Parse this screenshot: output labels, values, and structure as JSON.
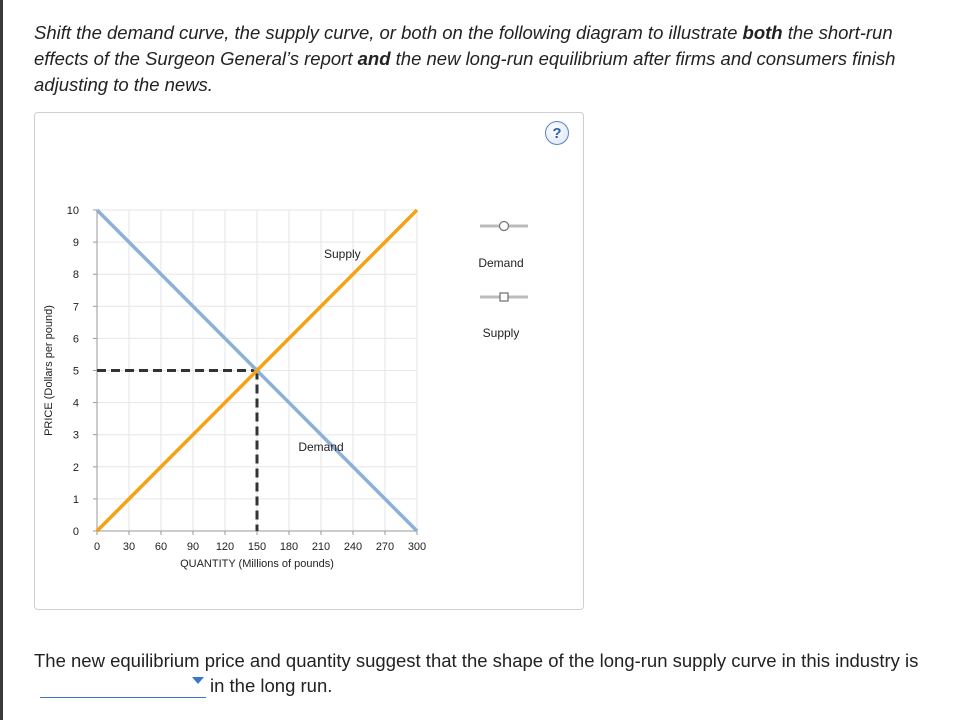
{
  "instructions": {
    "part1": "Shift the demand curve, the supply curve, or both on the following diagram to illustrate ",
    "bold1": "both",
    "part2": " the short-run effects of the Surgeon General’s report ",
    "bold2": "and",
    "part3": " the new long-run equilibrium after firms and consumers finish adjusting to the news."
  },
  "help_label": "?",
  "legend": {
    "demand_label": "Demand",
    "supply_label": "Supply"
  },
  "question": {
    "before": "The new equilibrium price and quantity suggest that the shape of the long-run supply curve in this industry is",
    "selected": "",
    "after": "in the long run."
  },
  "colors": {
    "demand": "#8db0d8",
    "supply": "#f5a214",
    "dashed": "#333333",
    "grid": "#e6e6e6"
  },
  "chart_data": {
    "type": "line",
    "xlabel": "QUANTITY (Millions of pounds)",
    "ylabel": "PRICE (Dollars per pound)",
    "xlim": [
      0,
      300
    ],
    "ylim": [
      0,
      10
    ],
    "xticks": [
      0,
      30,
      60,
      90,
      120,
      150,
      180,
      210,
      240,
      270,
      300
    ],
    "yticks": [
      0,
      1,
      2,
      3,
      4,
      5,
      6,
      7,
      8,
      9,
      10
    ],
    "grid": true,
    "series": [
      {
        "name": "Demand",
        "label": "Demand",
        "label_at": {
          "x": 210,
          "y": 2.5
        },
        "points": [
          [
            0,
            10
          ],
          [
            300,
            0
          ]
        ]
      },
      {
        "name": "Supply",
        "label": "Supply",
        "label_at": {
          "x": 230,
          "y": 8.5
        },
        "points": [
          [
            0,
            0
          ],
          [
            300,
            10
          ]
        ]
      }
    ],
    "equilibrium": {
      "x": 150,
      "y": 5
    }
  }
}
